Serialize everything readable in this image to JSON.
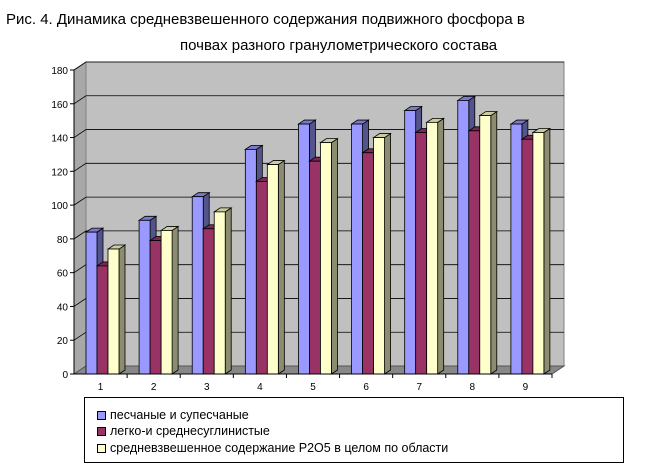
{
  "title": {
    "line1": "Рис. 4. Динамика средневзвешенного содержания подвижного фосфора в",
    "line2": "почвах разного гранулометрического состава"
  },
  "chart_data": {
    "type": "bar",
    "categories": [
      "1",
      "2",
      "3",
      "4",
      "5",
      "6",
      "7",
      "8",
      "9"
    ],
    "series": [
      {
        "name": "песчаные и супесчаные",
        "color": "#9999ff",
        "values": [
          84,
          91,
          105,
          133,
          148,
          148,
          156,
          162,
          148
        ]
      },
      {
        "name": "легко-и среднесуглинистые",
        "color": "#993366",
        "values": [
          64,
          79,
          86,
          114,
          126,
          131,
          143,
          144,
          139
        ]
      },
      {
        "name": "средневзвешенное содержание Р2О5 в целом по области",
        "color": "#ffffcc",
        "values": [
          74,
          85,
          96,
          124,
          137,
          140,
          149,
          153,
          143
        ]
      }
    ],
    "yticks": [
      "0",
      "20",
      "40",
      "60",
      "80",
      "100",
      "120",
      "140",
      "160",
      "180"
    ],
    "ylim": [
      0,
      180
    ],
    "grid": true,
    "legend_position": "bottom"
  }
}
